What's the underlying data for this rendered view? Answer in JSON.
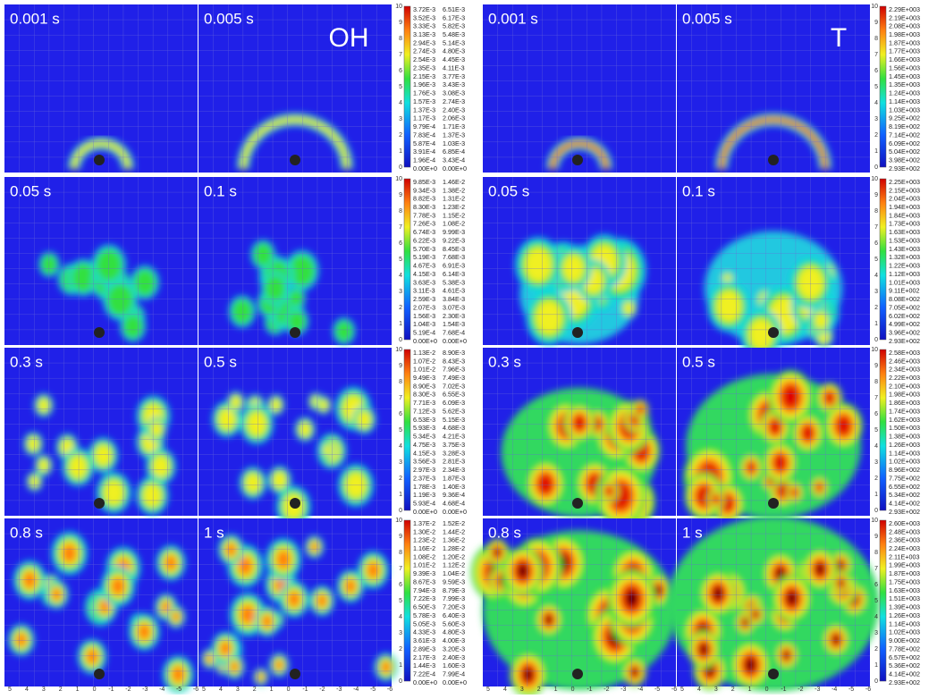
{
  "groups": [
    {
      "species": "OH",
      "rows": [
        {
          "times": [
            "0.001 s",
            "0.005 s"
          ],
          "legend": [
            [
              "3.72E-3",
              "6.51E-3"
            ],
            [
              "3.52E-3",
              "6.17E-3"
            ],
            [
              "3.33E-3",
              "5.82E-3"
            ],
            [
              "3.13E-3",
              "5.48E-3"
            ],
            [
              "2.94E-3",
              "5.14E-3"
            ],
            [
              "2.74E-3",
              "4.80E-3"
            ],
            [
              "2.54E-3",
              "4.45E-3"
            ],
            [
              "2.35E-3",
              "4.11E-3"
            ],
            [
              "2.15E-3",
              "3.77E-3"
            ],
            [
              "1.96E-3",
              "3.43E-3"
            ],
            [
              "1.76E-3",
              "3.08E-3"
            ],
            [
              "1.57E-3",
              "2.74E-3"
            ],
            [
              "1.37E-3",
              "2.40E-3"
            ],
            [
              "1.17E-3",
              "2.06E-3"
            ],
            [
              "9.79E-4",
              "1.71E-3"
            ],
            [
              "7.83E-4",
              "1.37E-3"
            ],
            [
              "5.87E-4",
              "1.03E-3"
            ],
            [
              "3.91E-4",
              "6.85E-4"
            ],
            [
              "1.96E-4",
              "3.43E-4"
            ],
            [
              "0.00E+0",
              "0.00E+0"
            ]
          ]
        },
        {
          "times": [
            "0.05 s",
            "0.1 s"
          ],
          "legend": [
            [
              "9.85E-3",
              "1.46E-2"
            ],
            [
              "9.34E-3",
              "1.38E-2"
            ],
            [
              "8.82E-3",
              "1.31E-2"
            ],
            [
              "8.30E-3",
              "1.23E-2"
            ],
            [
              "7.78E-3",
              "1.15E-2"
            ],
            [
              "7.26E-3",
              "1.08E-2"
            ],
            [
              "6.74E-3",
              "9.99E-3"
            ],
            [
              "6.22E-3",
              "9.22E-3"
            ],
            [
              "5.70E-3",
              "8.45E-3"
            ],
            [
              "5.19E-3",
              "7.68E-3"
            ],
            [
              "4.67E-3",
              "6.91E-3"
            ],
            [
              "4.15E-3",
              "6.14E-3"
            ],
            [
              "3.63E-3",
              "5.38E-3"
            ],
            [
              "3.11E-3",
              "4.61E-3"
            ],
            [
              "2.59E-3",
              "3.84E-3"
            ],
            [
              "2.07E-3",
              "3.07E-3"
            ],
            [
              "1.56E-3",
              "2.30E-3"
            ],
            [
              "1.04E-3",
              "1.54E-3"
            ],
            [
              "5.19E-4",
              "7.68E-4"
            ],
            [
              "0.00E+0",
              "0.00E+0"
            ]
          ]
        },
        {
          "times": [
            "0.3 s",
            "0.5 s"
          ],
          "legend": [
            [
              "1.13E-2",
              "8.90E-3"
            ],
            [
              "1.07E-2",
              "8.43E-3"
            ],
            [
              "1.01E-2",
              "7.96E-3"
            ],
            [
              "9.49E-3",
              "7.49E-3"
            ],
            [
              "8.90E-3",
              "7.02E-3"
            ],
            [
              "8.30E-3",
              "6.55E-3"
            ],
            [
              "7.71E-3",
              "6.09E-3"
            ],
            [
              "7.12E-3",
              "5.62E-3"
            ],
            [
              "6.53E-3",
              "5.15E-3"
            ],
            [
              "5.93E-3",
              "4.68E-3"
            ],
            [
              "5.34E-3",
              "4.21E-3"
            ],
            [
              "4.75E-3",
              "3.75E-3"
            ],
            [
              "4.15E-3",
              "3.28E-3"
            ],
            [
              "3.56E-3",
              "2.81E-3"
            ],
            [
              "2.97E-3",
              "2.34E-3"
            ],
            [
              "2.37E-3",
              "1.87E-3"
            ],
            [
              "1.78E-3",
              "1.40E-3"
            ],
            [
              "1.19E-3",
              "9.36E-4"
            ],
            [
              "5.93E-4",
              "4.68E-4"
            ],
            [
              "0.00E+0",
              "0.00E+0"
            ]
          ]
        },
        {
          "times": [
            "0.8 s",
            "1 s"
          ],
          "legend": [
            [
              "1.37E-2",
              "1.52E-2"
            ],
            [
              "1.30E-2",
              "1.44E-2"
            ],
            [
              "1.23E-2",
              "1.36E-2"
            ],
            [
              "1.16E-2",
              "1.28E-2"
            ],
            [
              "1.08E-2",
              "1.20E-2"
            ],
            [
              "1.01E-2",
              "1.12E-2"
            ],
            [
              "9.39E-3",
              "1.04E-2"
            ],
            [
              "8.67E-3",
              "9.59E-3"
            ],
            [
              "7.94E-3",
              "8.79E-3"
            ],
            [
              "7.22E-3",
              "7.99E-3"
            ],
            [
              "6.50E-3",
              "7.20E-3"
            ],
            [
              "5.78E-3",
              "6.40E-3"
            ],
            [
              "5.05E-3",
              "5.60E-3"
            ],
            [
              "4.33E-3",
              "4.80E-3"
            ],
            [
              "3.61E-3",
              "4.00E-3"
            ],
            [
              "2.89E-3",
              "3.20E-3"
            ],
            [
              "2.17E-3",
              "2.40E-3"
            ],
            [
              "1.44E-3",
              "1.60E-3"
            ],
            [
              "7.22E-4",
              "7.99E-4"
            ],
            [
              "0.00E+0",
              "0.00E+0"
            ]
          ]
        }
      ]
    },
    {
      "species": "T",
      "rows": [
        {
          "times": [
            "0.001 s",
            "0.005 s"
          ],
          "legend": [
            "2.29E+003",
            "2.19E+003",
            "2.08E+003",
            "1.98E+003",
            "1.87E+003",
            "1.77E+003",
            "1.66E+003",
            "1.56E+003",
            "1.45E+003",
            "1.35E+003",
            "1.24E+003",
            "1.14E+003",
            "1.03E+003",
            "9.25E+002",
            "8.19E+002",
            "7.14E+002",
            "6.09E+002",
            "5.04E+002",
            "3.98E+002",
            "2.93E+002"
          ]
        },
        {
          "times": [
            "0.05 s",
            "0.1 s"
          ],
          "legend": [
            "2.25E+003",
            "2.15E+003",
            "2.04E+003",
            "1.94E+003",
            "1.84E+003",
            "1.73E+003",
            "1.63E+003",
            "1.53E+003",
            "1.43E+003",
            "1.32E+003",
            "1.22E+003",
            "1.12E+003",
            "1.01E+003",
            "9.11E+002",
            "8.08E+002",
            "7.05E+002",
            "6.02E+002",
            "4.99E+002",
            "3.96E+002",
            "2.93E+002"
          ]
        },
        {
          "times": [
            "0.3 s",
            "0.5 s"
          ],
          "legend": [
            "2.58E+003",
            "2.46E+003",
            "2.34E+003",
            "2.22E+003",
            "2.10E+003",
            "1.98E+003",
            "1.86E+003",
            "1.74E+003",
            "1.62E+003",
            "1.50E+003",
            "1.38E+003",
            "1.26E+003",
            "1.14E+003",
            "1.02E+003",
            "8.96E+002",
            "7.75E+002",
            "6.55E+002",
            "5.34E+002",
            "4.14E+002",
            "2.93E+002"
          ]
        },
        {
          "times": [
            "0.8 s",
            "1 s"
          ],
          "legend": [
            "2.60E+003",
            "2.48E+003",
            "2.36E+003",
            "2.24E+003",
            "2.11E+003",
            "1.99E+003",
            "1.87E+003",
            "1.75E+003",
            "1.63E+003",
            "1.51E+003",
            "1.39E+003",
            "1.26E+003",
            "1.14E+003",
            "1.02E+003",
            "9.00E+002",
            "7.78E+002",
            "6.57E+002",
            "5.36E+002",
            "4.14E+002",
            "2.93E+002"
          ]
        }
      ]
    }
  ],
  "colorbar_ticks": [
    0,
    1,
    2,
    3,
    4,
    5,
    6,
    7,
    8,
    9,
    10
  ],
  "x_ticks": [
    5,
    4,
    3,
    2,
    1,
    0,
    -1,
    -2,
    -3,
    -4,
    -5,
    -6
  ]
}
